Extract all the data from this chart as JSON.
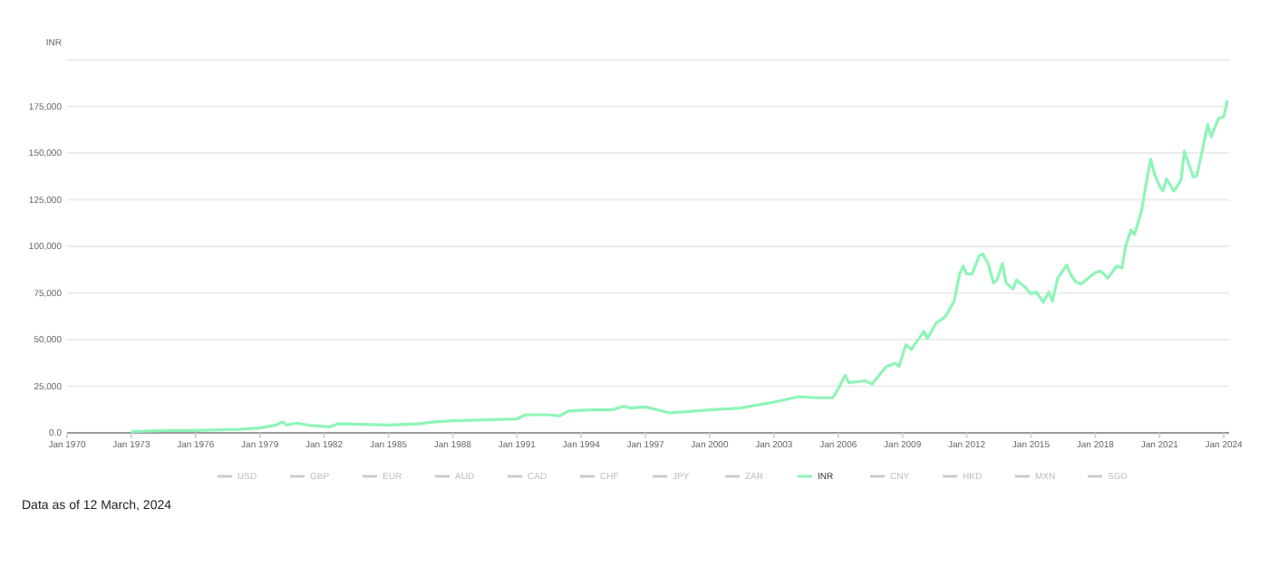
{
  "chart_data": {
    "type": "line",
    "ylabel": "INR",
    "annotations": [
      "Data as of 12 March, 2024"
    ],
    "xlim": [
      "1970-01",
      "2024-04"
    ],
    "xticks": [
      {
        "value": "1970-01",
        "label": "Jan 1970"
      },
      {
        "value": "1973-01",
        "label": "Jan 1973"
      },
      {
        "value": "1976-01",
        "label": "Jan 1976"
      },
      {
        "value": "1979-01",
        "label": "Jan 1979"
      },
      {
        "value": "1982-01",
        "label": "Jan 1982"
      },
      {
        "value": "1985-01",
        "label": "Jan 1985"
      },
      {
        "value": "1988-01",
        "label": "Jan 1988"
      },
      {
        "value": "1991-01",
        "label": "Jan 1991"
      },
      {
        "value": "1994-01",
        "label": "Jan 1994"
      },
      {
        "value": "1997-01",
        "label": "Jan 1997"
      },
      {
        "value": "2000-01",
        "label": "Jan 2000"
      },
      {
        "value": "2003-01",
        "label": "Jan 2003"
      },
      {
        "value": "2006-01",
        "label": "Jan 2006"
      },
      {
        "value": "2009-01",
        "label": "Jan 2009"
      },
      {
        "value": "2012-01",
        "label": "Jan 2012"
      },
      {
        "value": "2015-01",
        "label": "Jan 2015"
      },
      {
        "value": "2018-01",
        "label": "Jan 2018"
      },
      {
        "value": "2021-01",
        "label": "Jan 2021"
      },
      {
        "value": "2024-01",
        "label": "Jan 2024"
      }
    ],
    "ylim": [
      0,
      200000
    ],
    "yticks": [
      {
        "value": 0,
        "label": "0.0"
      },
      {
        "value": 25000,
        "label": "25,000"
      },
      {
        "value": 50000,
        "label": "50,000"
      },
      {
        "value": 75000,
        "label": "75,000"
      },
      {
        "value": 100000,
        "label": "100,000"
      },
      {
        "value": 125000,
        "label": "125,000"
      },
      {
        "value": 150000,
        "label": "150,000"
      },
      {
        "value": 175000,
        "label": "175,000"
      },
      {
        "value": 200000,
        "label": null
      }
    ],
    "grid": "y",
    "legend": "bottom",
    "marker": "none",
    "line_style": "solid",
    "series": [
      {
        "name": "USD",
        "color": "#cccccc"
      },
      {
        "name": "GBP",
        "color": "#cccccc"
      },
      {
        "name": "EUR",
        "color": "#cccccc"
      },
      {
        "name": "AUD",
        "color": "#cccccc"
      },
      {
        "name": "CAD",
        "color": "#cccccc"
      },
      {
        "name": "CHF",
        "color": "#cccccc"
      },
      {
        "name": "JPY",
        "color": "#cccccc"
      },
      {
        "name": "ZAR",
        "color": "#cccccc"
      },
      {
        "name": "INR",
        "color": "#8ef5b8",
        "x": [
          "1973-01",
          "1974-07",
          "1976-01",
          "1978-01",
          "1979-01",
          "1979-10",
          "1980-02",
          "1980-04",
          "1980-10",
          "1981-06",
          "1982-04",
          "1982-09",
          "1985-01",
          "1986-07",
          "1987-01",
          "1988-01",
          "1990-01",
          "1991-01",
          "1991-06",
          "1992-06",
          "1993-01",
          "1993-06",
          "1994-06",
          "1995-06",
          "1996-01",
          "1996-04",
          "1997-01",
          "1998-03",
          "2000-01",
          "2001-06",
          "2003-01",
          "2004-03",
          "2005-01",
          "2005-10",
          "2006-01",
          "2006-05",
          "2006-07",
          "2007-04",
          "2007-08",
          "2008-04",
          "2008-09",
          "2008-11",
          "2009-03",
          "2009-06",
          "2010-01",
          "2010-03",
          "2010-08",
          "2011-01",
          "2011-06",
          "2011-09",
          "2011-11",
          "2012-01",
          "2012-04",
          "2012-08",
          "2012-10",
          "2013-01",
          "2013-04",
          "2013-06",
          "2013-09",
          "2013-11",
          "2014-03",
          "2014-05",
          "2014-10",
          "2015-01",
          "2015-04",
          "2015-08",
          "2015-11",
          "2016-01",
          "2016-04",
          "2016-09",
          "2016-11",
          "2017-02",
          "2017-05",
          "2017-10",
          "2018-01",
          "2018-04",
          "2018-08",
          "2019-01",
          "2019-04",
          "2019-06",
          "2019-09",
          "2019-11",
          "2020-03",
          "2020-05",
          "2020-08",
          "2020-10",
          "2021-01",
          "2021-03",
          "2021-05",
          "2021-09",
          "2022-01",
          "2022-03",
          "2022-05",
          "2022-08",
          "2022-10",
          "2023-01",
          "2023-04",
          "2023-06",
          "2023-10",
          "2024-01",
          "2024-03"
        ],
        "values": [
          650,
          1300,
          1300,
          1900,
          2600,
          4200,
          5800,
          4200,
          5200,
          3900,
          3200,
          4900,
          4200,
          4900,
          5800,
          6500,
          7100,
          7500,
          9700,
          9700,
          9100,
          11700,
          12300,
          12300,
          14300,
          13300,
          13900,
          10700,
          12300,
          13300,
          16500,
          19400,
          18800,
          18800,
          23700,
          30800,
          26900,
          27900,
          26200,
          35600,
          37300,
          35600,
          47300,
          44700,
          54400,
          50500,
          59000,
          62200,
          70600,
          85200,
          89400,
          85200,
          85200,
          94900,
          95900,
          90700,
          80400,
          82000,
          90700,
          80400,
          77100,
          82000,
          77800,
          74500,
          75500,
          70000,
          75500,
          70600,
          82900,
          90000,
          85200,
          81000,
          79700,
          83600,
          85900,
          86800,
          82900,
          89400,
          88400,
          99800,
          108900,
          106300,
          119200,
          130600,
          146800,
          139300,
          132200,
          129600,
          136100,
          129600,
          135400,
          151000,
          145200,
          137100,
          138100,
          151600,
          165200,
          158800,
          168500,
          169500,
          178200
        ]
      },
      {
        "name": "CNY",
        "color": "#cccccc"
      },
      {
        "name": "HKD",
        "color": "#cccccc"
      },
      {
        "name": "MXN",
        "color": "#cccccc"
      },
      {
        "name": "SGD",
        "color": "#cccccc"
      }
    ]
  }
}
